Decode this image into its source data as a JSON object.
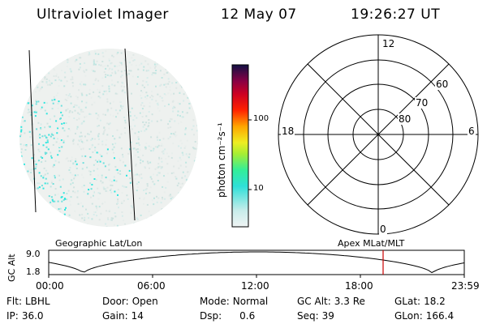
{
  "header": {
    "instrument": "Ultraviolet Imager",
    "date": "12 May 07",
    "time": "19:26:27 UT"
  },
  "colorbar": {
    "unit_label": "photon cm⁻²s⁻¹",
    "ticks": [
      "100",
      "10"
    ],
    "colors": [
      "#e6f2f0",
      "#2fe0d8",
      "#33ee99",
      "#a6ee33",
      "#eeee22",
      "#ffa500",
      "#ff2200",
      "#cc0022",
      "#990033",
      "#4a0033",
      "#111144"
    ]
  },
  "polar_plot": {
    "lat_labels": [
      "80",
      "70",
      "60"
    ],
    "mlt_labels": {
      "top": "12",
      "left": "18",
      "right": "6",
      "bottom": "0"
    }
  },
  "captions": {
    "left": "Geographic Lat/Lon",
    "right": "Apex MLat/MLT"
  },
  "altitude_panel": {
    "ylabel": "GC Alt",
    "yticks": [
      "9.0",
      "1.8"
    ],
    "time_ticks": [
      "00:00",
      "06:00",
      "12:00",
      "18:00",
      "23:59"
    ],
    "marker_color": "#cc0000"
  },
  "info": {
    "filter": {
      "label": "Flt:",
      "value": "LBHL"
    },
    "ip": {
      "label": "IP:",
      "value": "36.0"
    },
    "door": {
      "label": "Door:",
      "value": "Open"
    },
    "gain": {
      "label": "Gain:",
      "value": "14"
    },
    "mode": {
      "label": "Mode:",
      "value": "Normal"
    },
    "dsp": {
      "label": "Dsp:",
      "value": "0.6"
    },
    "gc_alt": {
      "label": "GC Alt:",
      "value": "3.3 Re"
    },
    "seq": {
      "label": "Seq:",
      "value": "39"
    },
    "glat": {
      "label": "GLat:",
      "value": "18.2"
    },
    "glon": {
      "label": "GLon:",
      "value": "166.4"
    }
  }
}
